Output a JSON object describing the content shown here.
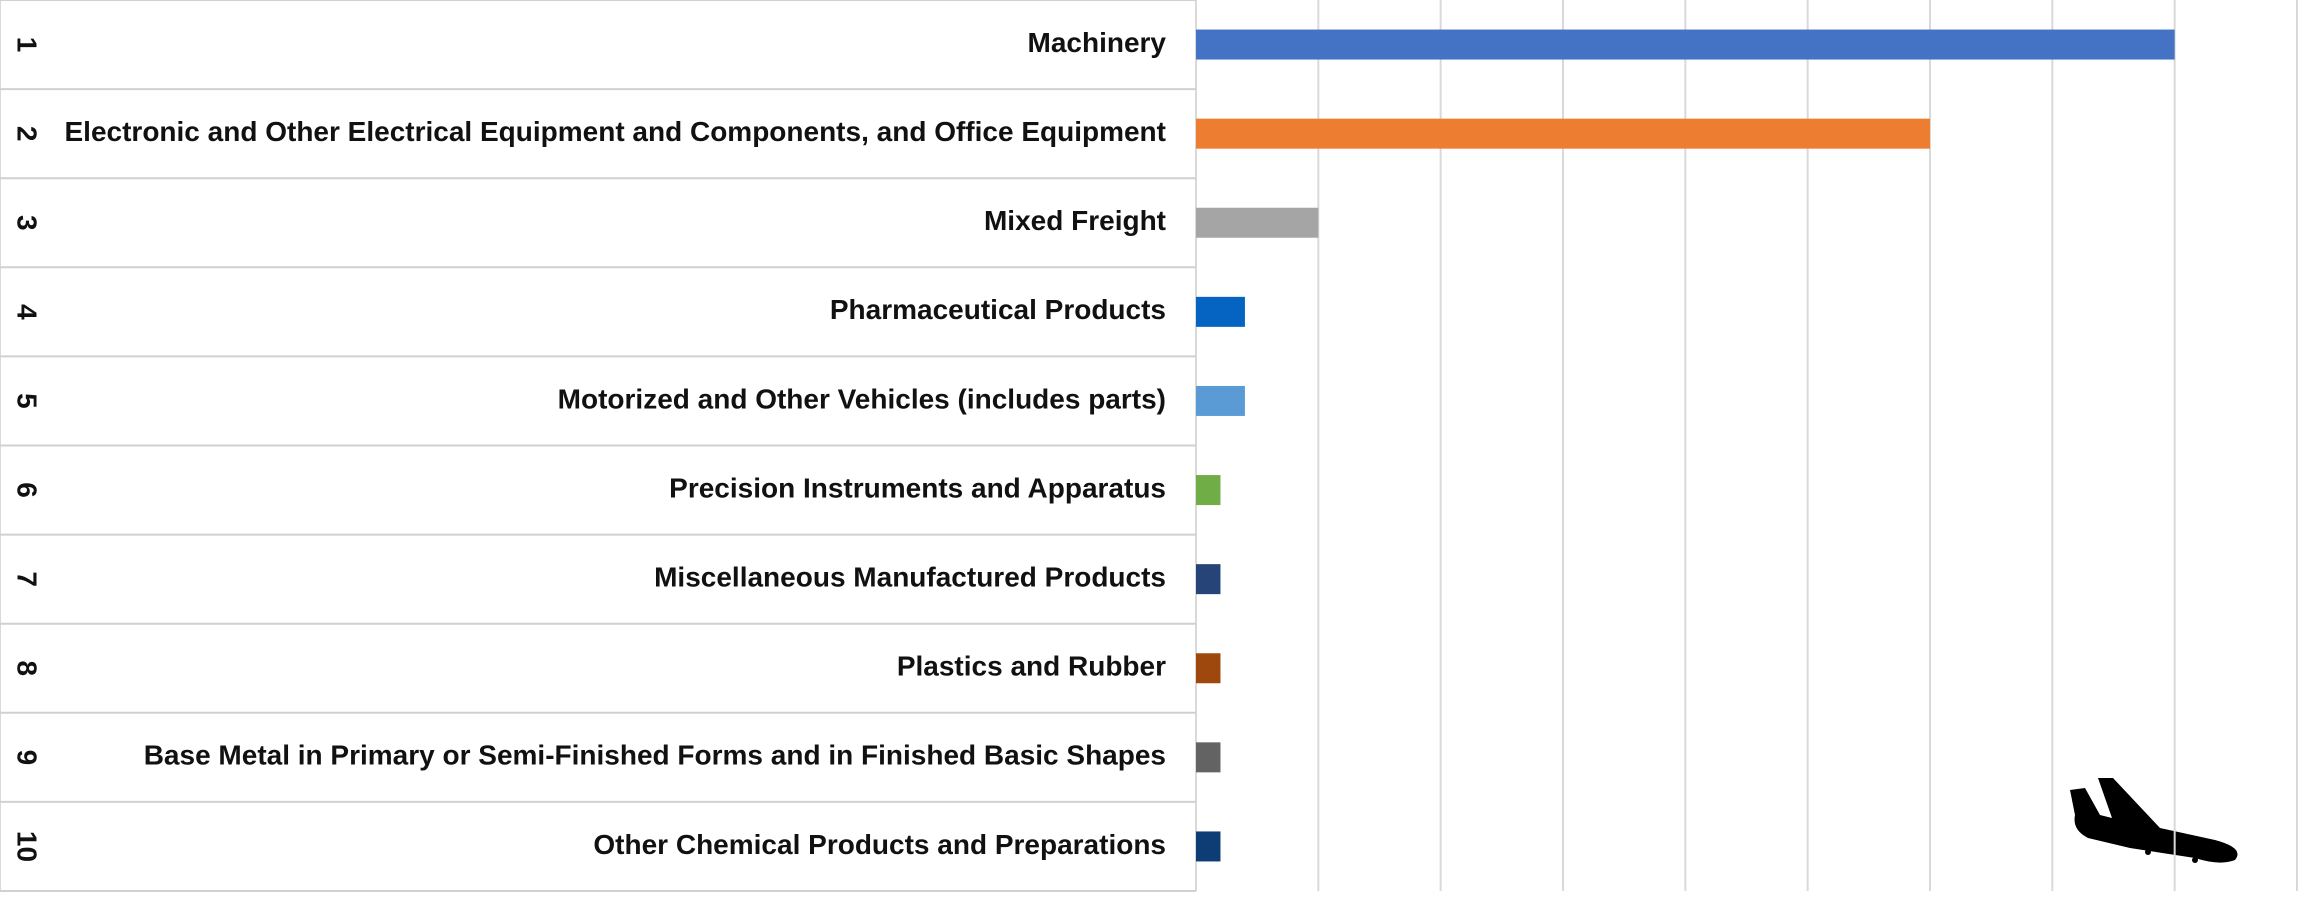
{
  "chart_data": {
    "type": "bar",
    "orientation": "horizontal",
    "ranks": [
      "1",
      "2",
      "3",
      "4",
      "5",
      "6",
      "7",
      "8",
      "9",
      "10"
    ],
    "categories": [
      "Machinery",
      "Electronic and Other Electrical Equipment and Components, and Office Equipment",
      "Mixed Freight",
      "Pharmaceutical Products",
      "Motorized and Other Vehicles (includes parts)",
      "Precision Instruments and Apparatus",
      "Miscellaneous Manufactured Products",
      "Plastics and Rubber",
      "Base Metal in Primary or Semi-Finished Forms and in Finished Basic Shapes",
      "Other Chemical Products and Preparations"
    ],
    "values": [
      8,
      6,
      1,
      0.4,
      0.4,
      0.2,
      0.2,
      0.2,
      0.2,
      0.2
    ],
    "colors": [
      "#4472c4",
      "#ed7d31",
      "#a5a5a5",
      "#0563c1",
      "#5b9bd5",
      "#70ad47",
      "#264478",
      "#9e480e",
      "#636363",
      "#0e3d75"
    ],
    "xlim": [
      0,
      9
    ],
    "xticks": [
      0,
      1,
      2,
      3,
      4,
      5,
      6,
      7,
      8,
      9
    ],
    "grid": true
  }
}
